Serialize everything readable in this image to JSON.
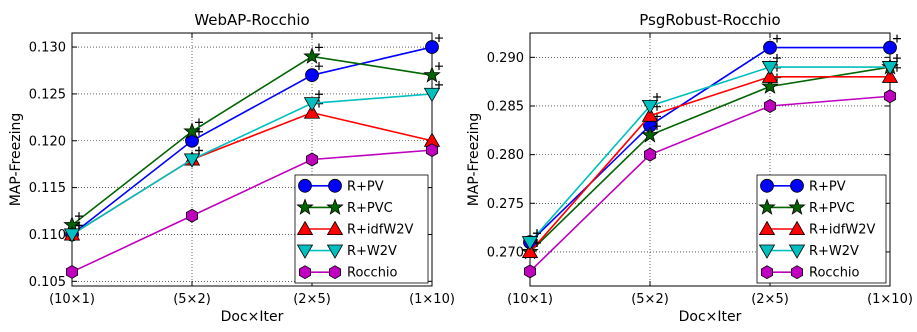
{
  "chart_data": [
    {
      "type": "line",
      "title": "WebAP-Rocchio",
      "xlabel": "Doc×Iter",
      "ylabel": "MAP-Freezing",
      "categories": [
        "(10×1)",
        "(5×2)",
        "(2×5)",
        "(1×10)"
      ],
      "ylim": [
        0.1045,
        0.1315
      ],
      "yticks": [
        "0.105",
        "0.110",
        "0.115",
        "0.120",
        "0.125",
        "0.130"
      ],
      "ytick_values": [
        0.105,
        0.11,
        0.115,
        0.12,
        0.125,
        0.13
      ],
      "grid": true,
      "legend_position": "bottom-right",
      "series": [
        {
          "name": "R+PV",
          "values": [
            0.11,
            0.12,
            0.127,
            0.13
          ],
          "color": "#0000ff",
          "marker": "circle",
          "plus": [
            true,
            true,
            true,
            true
          ]
        },
        {
          "name": "R+PVC",
          "values": [
            0.111,
            0.121,
            0.129,
            0.127
          ],
          "color": "#006400",
          "marker": "star",
          "plus": [
            true,
            true,
            true,
            true
          ]
        },
        {
          "name": "R+idfW2V",
          "values": [
            0.11,
            0.118,
            0.123,
            0.12
          ],
          "color": "#ff0000",
          "marker": "triangle-up",
          "plus": [
            true,
            true,
            true,
            false
          ]
        },
        {
          "name": "R+W2V",
          "values": [
            0.11,
            0.118,
            0.124,
            0.125
          ],
          "color": "#00bfbf",
          "marker": "triangle-down",
          "plus": [
            true,
            true,
            true,
            true
          ]
        },
        {
          "name": "Rocchio",
          "values": [
            0.106,
            0.112,
            0.118,
            0.119
          ],
          "color": "#bf00bf",
          "marker": "hexagon",
          "plus": [
            false,
            false,
            false,
            false
          ]
        }
      ]
    },
    {
      "type": "line",
      "title": "PsgRobust-Rocchio",
      "xlabel": "Doc×Iter",
      "ylabel": "MAP-Freezing",
      "categories": [
        "(10×1)",
        "(5×2)",
        "(2×5)",
        "(1×10)"
      ],
      "ylim": [
        0.2665,
        0.2925
      ],
      "yticks": [
        "0.270",
        "0.275",
        "0.280",
        "0.285",
        "0.290"
      ],
      "ytick_values": [
        0.27,
        0.275,
        0.28,
        0.285,
        0.29
      ],
      "grid": true,
      "legend_position": "bottom-right",
      "series": [
        {
          "name": "R+PV",
          "values": [
            0.271,
            0.283,
            0.291,
            0.291
          ],
          "color": "#0000ff",
          "marker": "circle",
          "plus": [
            true,
            true,
            true,
            true
          ]
        },
        {
          "name": "R+PVC",
          "values": [
            0.27,
            0.282,
            0.287,
            0.289
          ],
          "color": "#006400",
          "marker": "star",
          "plus": [
            true,
            true,
            true,
            true
          ]
        },
        {
          "name": "R+idfW2V",
          "values": [
            0.27,
            0.284,
            0.288,
            0.288
          ],
          "color": "#ff0000",
          "marker": "triangle-up",
          "plus": [
            true,
            true,
            true,
            true
          ]
        },
        {
          "name": "R+W2V",
          "values": [
            0.271,
            0.285,
            0.289,
            0.289
          ],
          "color": "#00bfbf",
          "marker": "triangle-down",
          "plus": [
            true,
            true,
            true,
            true
          ]
        },
        {
          "name": "Rocchio",
          "values": [
            0.268,
            0.28,
            0.285,
            0.286
          ],
          "color": "#bf00bf",
          "marker": "hexagon",
          "plus": [
            false,
            false,
            false,
            false
          ]
        }
      ]
    }
  ]
}
